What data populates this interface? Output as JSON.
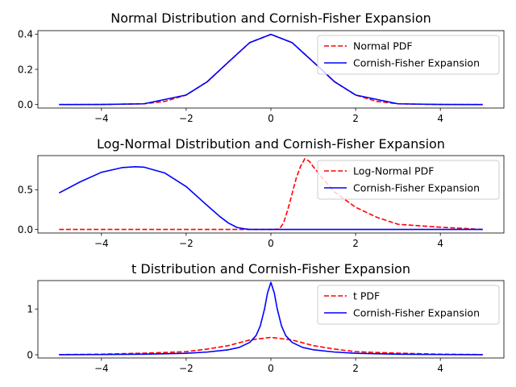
{
  "chart_data": [
    {
      "type": "line",
      "title": "Normal Distribution and Cornish-Fisher Expansion",
      "xlim": [
        -5.5,
        5.5
      ],
      "ylim": [
        -0.02,
        0.42
      ],
      "xticks": [
        -4,
        -2,
        0,
        2,
        4
      ],
      "xtick_labels": [
        "−4",
        "−2",
        "0",
        "2",
        "4"
      ],
      "yticks": [
        0.0,
        0.2,
        0.4
      ],
      "ytick_labels": [
        "0.0",
        "0.2",
        "0.4"
      ],
      "legend_position": "upper right",
      "series": [
        {
          "name": "Normal PDF",
          "color": "#ff0000",
          "dash": "dashed",
          "x": [
            -5,
            -4,
            -3,
            -2.5,
            -2,
            -1.5,
            -1,
            -0.5,
            0,
            0.5,
            1,
            1.5,
            2,
            2.5,
            3,
            4,
            5
          ],
          "values": [
            0.0,
            0.0001,
            0.004,
            0.018,
            0.054,
            0.13,
            0.242,
            0.352,
            0.399,
            0.352,
            0.242,
            0.13,
            0.054,
            0.018,
            0.004,
            0.0001,
            0.0
          ]
        },
        {
          "name": "Cornish-Fisher Expansion",
          "color": "#0000ff",
          "dash": "solid",
          "x": [
            -5,
            -4,
            -3,
            -2,
            -1.5,
            -1,
            -0.5,
            0,
            0.5,
            1,
            1.5,
            2,
            3,
            4,
            5
          ],
          "values": [
            0.0,
            0.0001,
            0.004,
            0.054,
            0.13,
            0.242,
            0.352,
            0.399,
            0.352,
            0.242,
            0.13,
            0.054,
            0.004,
            0.0001,
            0.0
          ]
        }
      ]
    },
    {
      "type": "line",
      "title": "Log-Normal Distribution and Cornish-Fisher Expansion",
      "xlim": [
        -5.5,
        5.5
      ],
      "ylim": [
        -0.045,
        0.93
      ],
      "xticks": [
        -4,
        -2,
        0,
        2,
        4
      ],
      "xtick_labels": [
        "−4",
        "−2",
        "0",
        "2",
        "4"
      ],
      "yticks": [
        0.0,
        0.5
      ],
      "ytick_labels": [
        "0.0",
        "0.5"
      ],
      "legend_position": "upper right",
      "series": [
        {
          "name": "Log-Normal PDF",
          "color": "#ff0000",
          "dash": "dashed",
          "x": [
            -5,
            -3,
            -1,
            0,
            0.2,
            0.3,
            0.4,
            0.5,
            0.6,
            0.7,
            0.8,
            0.9,
            1.0,
            1.2,
            1.5,
            2.0,
            2.5,
            3.0,
            4.0,
            5.0
          ],
          "values": [
            0.0,
            0.0,
            0.0,
            0.0,
            0.004,
            0.083,
            0.252,
            0.448,
            0.65,
            0.795,
            0.89,
            0.862,
            0.79,
            0.658,
            0.472,
            0.279,
            0.153,
            0.065,
            0.028,
            0.0
          ]
        },
        {
          "name": "Cornish-Fisher Expansion",
          "color": "#0000ff",
          "dash": "solid",
          "x": [
            -5.0,
            -4.5,
            -4.0,
            -3.5,
            -3.2,
            -3.0,
            -2.5,
            -2.0,
            -1.5,
            -1.2,
            -1.0,
            -0.8,
            -0.6,
            -0.5,
            0.0,
            1.0,
            2.0,
            3.0,
            4.0,
            5.0
          ],
          "values": [
            0.46,
            0.6,
            0.72,
            0.78,
            0.79,
            0.785,
            0.71,
            0.54,
            0.3,
            0.16,
            0.08,
            0.025,
            0.006,
            0.0,
            0.0,
            0.0,
            0.0,
            0.0,
            0.0,
            0.0
          ]
        }
      ]
    },
    {
      "type": "line",
      "title": "t Distribution and Cornish-Fisher Expansion",
      "xlim": [
        -5.5,
        5.5
      ],
      "ylim": [
        -0.07,
        1.62
      ],
      "xticks": [
        -4,
        -2,
        0,
        2,
        4
      ],
      "xtick_labels": [
        "−4",
        "−2",
        "0",
        "2",
        "4"
      ],
      "yticks": [
        0,
        1
      ],
      "ytick_labels": [
        "0",
        "1"
      ],
      "legend_position": "upper right",
      "series": [
        {
          "name": "t PDF",
          "color": "#ff0000",
          "dash": "dashed",
          "x": [
            -5,
            -4,
            -3,
            -2.5,
            -2,
            -1.5,
            -1,
            -0.5,
            0,
            0.5,
            1,
            1.5,
            2,
            2.5,
            3,
            4,
            5
          ],
          "values": [
            0.004,
            0.013,
            0.035,
            0.05,
            0.068,
            0.125,
            0.2,
            0.323,
            0.38,
            0.323,
            0.2,
            0.125,
            0.068,
            0.05,
            0.035,
            0.013,
            0.004
          ]
        },
        {
          "name": "Cornish-Fisher Expansion",
          "color": "#0000ff",
          "dash": "solid",
          "x": [
            -5,
            -4,
            -3,
            -2,
            -1.5,
            -1,
            -0.75,
            -0.5,
            -0.35,
            -0.25,
            -0.15,
            -0.08,
            0,
            0.08,
            0.15,
            0.25,
            0.35,
            0.5,
            0.75,
            1,
            1.5,
            2,
            3,
            4,
            5
          ],
          "values": [
            0.002,
            0.005,
            0.013,
            0.033,
            0.06,
            0.11,
            0.16,
            0.27,
            0.42,
            0.63,
            1.0,
            1.35,
            1.58,
            1.35,
            1.0,
            0.63,
            0.42,
            0.27,
            0.16,
            0.11,
            0.06,
            0.033,
            0.013,
            0.005,
            0.002
          ]
        }
      ]
    }
  ]
}
